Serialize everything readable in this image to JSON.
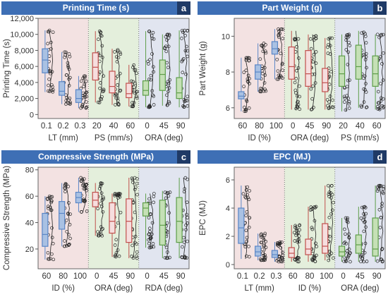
{
  "colors": {
    "title_bg": "#3e6fb5",
    "badge_bg": "#1f3a66",
    "bg_red": "#f3e2e2",
    "bg_green": "#e4efdc",
    "bg_blue": "#e1e5f0",
    "box_blue": "#5b86c6",
    "box_blue_fill": "#a9c1e3",
    "box_red": "#c0504d",
    "box_red_fill": "#f6dede",
    "box_green": "#5e9e4a",
    "box_green_fill": "#c5e0b6"
  },
  "panels": [
    {
      "title": "Printing Time (s)",
      "letter": "a",
      "chart_data": {
        "type": "box",
        "ylabel": "Printing Time (s)",
        "ylim": [
          -500,
          12000
        ],
        "yticks": [
          0,
          2000,
          4000,
          6000,
          8000,
          10000,
          12000
        ],
        "ytick_labels": [
          "0",
          "2,000",
          "4,000",
          "6,000",
          "8,000",
          "10,000",
          "12,000"
        ],
        "groups": [
          {
            "xlabel": "LT (mm)",
            "bg": "red",
            "color": "blue",
            "categories": [
              "0.1",
              "0.2",
              "0.3"
            ],
            "boxes": [
              {
                "q1": 5200,
                "median": 6800,
                "q3": 8200,
                "min": 2800,
                "max": 10500
              },
              {
                "q1": 2400,
                "median": 2900,
                "q3": 4100,
                "min": 1300,
                "max": 7800
              },
              {
                "q1": 1500,
                "median": 2000,
                "q3": 3100,
                "min": 800,
                "max": 4800
              }
            ]
          },
          {
            "xlabel": "PS (mm/s)",
            "bg": "green",
            "color": "red",
            "categories": [
              "20",
              "40",
              "60"
            ],
            "boxes": [
              {
                "q1": 4300,
                "median": 5900,
                "q3": 7700,
                "min": 1500,
                "max": 10400
              },
              {
                "q1": 2700,
                "median": 3500,
                "q3": 5400,
                "min": 1200,
                "max": 8200
              },
              {
                "q1": 2100,
                "median": 2600,
                "q3": 3900,
                "min": 1000,
                "max": 6200
              }
            ]
          },
          {
            "xlabel": "ORA (deg)",
            "bg": "blue",
            "color": "green",
            "categories": [
              "0",
              "45",
              "90"
            ],
            "boxes": [
              {
                "q1": 2400,
                "median": 3000,
                "q3": 4200,
                "min": 900,
                "max": 10400
              },
              {
                "q1": 3000,
                "median": 5000,
                "q3": 6800,
                "min": 1100,
                "max": 10000
              },
              {
                "q1": 2000,
                "median": 2700,
                "q3": 4600,
                "min": 900,
                "max": 10500
              }
            ]
          }
        ]
      }
    },
    {
      "title": "Part Weight (g)",
      "letter": "b",
      "chart_data": {
        "type": "box",
        "ylabel": "Part Weight (g)",
        "ylim": [
          5.4,
          11.0
        ],
        "yticks": [
          6,
          8,
          10
        ],
        "ytick_labels": [
          "6",
          "8",
          "10"
        ],
        "groups": [
          {
            "xlabel": "ID (%)",
            "bg": "red",
            "color": "blue",
            "categories": [
              "60",
              "80",
              "100"
            ],
            "boxes": [
              {
                "q1": 6.5,
                "median": 6.65,
                "q3": 6.9,
                "min": 5.8,
                "max": 8.8
              },
              {
                "q1": 7.6,
                "median": 8.0,
                "q3": 8.4,
                "min": 6.9,
                "max": 9.6
              },
              {
                "q1": 9.0,
                "median": 9.3,
                "q3": 9.7,
                "min": 7.6,
                "max": 10.4
              }
            ]
          },
          {
            "xlabel": "ORA (deg)",
            "bg": "green",
            "color": "red",
            "categories": [
              "0",
              "45",
              "90"
            ],
            "boxes": [
              {
                "q1": 7.6,
                "median": 8.3,
                "q3": 9.4,
                "min": 5.9,
                "max": 10.3
              },
              {
                "q1": 7.2,
                "median": 7.9,
                "q3": 9.2,
                "min": 5.9,
                "max": 10.1
              },
              {
                "q1": 6.9,
                "median": 7.4,
                "q3": 8.2,
                "min": 5.9,
                "max": 9.9
              }
            ]
          },
          {
            "xlabel": "PS (mm/s)",
            "bg": "blue",
            "color": "green",
            "categories": [
              "20",
              "40",
              "60"
            ],
            "boxes": [
              {
                "q1": 7.2,
                "median": 7.9,
                "q3": 8.9,
                "min": 5.8,
                "max": 10.1
              },
              {
                "q1": 7.6,
                "median": 8.3,
                "q3": 9.5,
                "min": 6.0,
                "max": 10.3
              },
              {
                "q1": 7.2,
                "median": 7.9,
                "q3": 8.9,
                "min": 5.9,
                "max": 10.1
              }
            ]
          }
        ]
      }
    },
    {
      "title": "Compressive Strength (MPa)",
      "letter": "c",
      "chart_data": {
        "type": "box",
        "ylabel": "Compressive Strength (MPa)",
        "ylim": [
          5,
          82
        ],
        "yticks": [
          20,
          40,
          60,
          80
        ],
        "ytick_labels": [
          "20",
          "40",
          "60",
          "80"
        ],
        "groups": [
          {
            "xlabel": "ID (%)",
            "bg": "red",
            "color": "blue",
            "categories": [
              "60",
              "80",
              "100"
            ],
            "boxes": [
              {
                "q1": 22,
                "median": 31,
                "q3": 47,
                "min": 12,
                "max": 60
              },
              {
                "q1": 35,
                "median": 47,
                "q3": 56,
                "min": 22,
                "max": 70
              },
              {
                "q1": 55,
                "median": 59,
                "q3": 63,
                "min": 48,
                "max": 74
              }
            ]
          },
          {
            "xlabel": "ORA (deg)",
            "bg": "green",
            "color": "red",
            "categories": [
              "0",
              "45",
              "90"
            ],
            "boxes": [
              {
                "q1": 52,
                "median": 57,
                "q3": 63,
                "min": 30,
                "max": 70
              },
              {
                "q1": 32,
                "median": 41,
                "q3": 55,
                "min": 14,
                "max": 62
              },
              {
                "q1": 25,
                "median": 41,
                "q3": 58,
                "min": 13,
                "max": 74
              }
            ]
          },
          {
            "xlabel": "RDA (deg)",
            "bg": "blue",
            "color": "green",
            "categories": [
              "0",
              "45",
              "90"
            ],
            "boxes": [
              {
                "q1": 45,
                "median": 51,
                "q3": 55,
                "min": 21,
                "max": 62
              },
              {
                "q1": 23,
                "median": 38,
                "q3": 57,
                "min": 13,
                "max": 64
              },
              {
                "q1": 25,
                "median": 41,
                "q3": 59,
                "min": 13,
                "max": 74
              }
            ]
          }
        ]
      }
    },
    {
      "title": "EPC (MJ)",
      "letter": "d",
      "chart_data": {
        "type": "box",
        "ylabel": "EPC (MJ)",
        "ylim": [
          -0.3,
          6.9
        ],
        "yticks": [
          0,
          2,
          4,
          6
        ],
        "ytick_labels": [
          "0",
          "2",
          "4",
          "6"
        ],
        "groups": [
          {
            "xlabel": "LT (mm)",
            "bg": "red",
            "color": "blue",
            "categories": [
              "0.1",
              "0.2",
              "0.3"
            ],
            "boxes": [
              {
                "q1": 1.5,
                "median": 2.6,
                "q3": 4.0,
                "min": 0.4,
                "max": 5.6
              },
              {
                "q1": 0.6,
                "median": 0.9,
                "q3": 1.3,
                "min": 0.3,
                "max": 2.2
              },
              {
                "q1": 0.5,
                "median": 0.7,
                "q3": 1.0,
                "min": 0.2,
                "max": 1.6
              }
            ]
          },
          {
            "xlabel": "ID (%)",
            "bg": "green",
            "color": "red",
            "categories": [
              "60",
              "80",
              "100"
            ],
            "boxes": [
              {
                "q1": 0.5,
                "median": 0.8,
                "q3": 1.2,
                "min": 0.2,
                "max": 2.8
              },
              {
                "q1": 0.7,
                "median": 1.1,
                "q3": 1.8,
                "min": 0.2,
                "max": 4.1
              },
              {
                "q1": 0.8,
                "median": 1.3,
                "q3": 2.9,
                "min": 0.3,
                "max": 5.6
              }
            ]
          },
          {
            "xlabel": "ORA (deg)",
            "bg": "blue",
            "color": "green",
            "categories": [
              "0",
              "45",
              "90"
            ],
            "boxes": [
              {
                "q1": 0.6,
                "median": 0.9,
                "q3": 1.3,
                "min": 0.2,
                "max": 3.3
              },
              {
                "q1": 0.8,
                "median": 1.4,
                "q3": 2.1,
                "min": 0.2,
                "max": 4.1
              },
              {
                "q1": 0.6,
                "median": 1.1,
                "q3": 3.3,
                "min": 0.2,
                "max": 5.6
              }
            ]
          }
        ]
      }
    }
  ]
}
